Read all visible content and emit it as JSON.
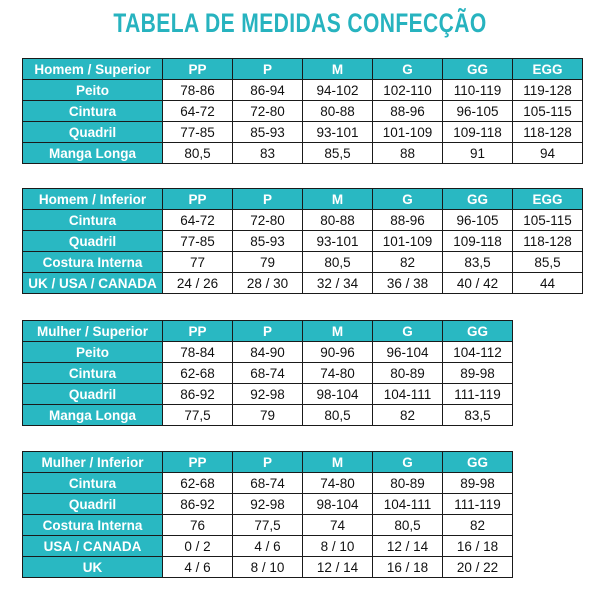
{
  "title": "TABELA DE MEDIDAS CONFECÇÃO",
  "tables": [
    {
      "corner": "Homem / Superior",
      "headers": [
        "PP",
        "P",
        "M",
        "G",
        "GG",
        "EGG"
      ],
      "rows": [
        {
          "label": "Peito",
          "cells": [
            "78-86",
            "86-94",
            "94-102",
            "102-110",
            "110-119",
            "119-128"
          ]
        },
        {
          "label": "Cintura",
          "cells": [
            "64-72",
            "72-80",
            "80-88",
            "88-96",
            "96-105",
            "105-115"
          ]
        },
        {
          "label": "Quadril",
          "cells": [
            "77-85",
            "85-93",
            "93-101",
            "101-109",
            "109-118",
            "118-128"
          ]
        },
        {
          "label": "Manga Longa",
          "cells": [
            "80,5",
            "83",
            "85,5",
            "88",
            "91",
            "94"
          ]
        }
      ]
    },
    {
      "corner": "Homem / Inferior",
      "headers": [
        "PP",
        "P",
        "M",
        "G",
        "GG",
        "EGG"
      ],
      "rows": [
        {
          "label": "Cintura",
          "cells": [
            "64-72",
            "72-80",
            "80-88",
            "88-96",
            "96-105",
            "105-115"
          ]
        },
        {
          "label": "Quadril",
          "cells": [
            "77-85",
            "85-93",
            "93-101",
            "101-109",
            "109-118",
            "118-128"
          ]
        },
        {
          "label": "Costura Interna",
          "cells": [
            "77",
            "79",
            "80,5",
            "82",
            "83,5",
            "85,5"
          ]
        },
        {
          "label": "UK / USA / CANADA",
          "cells": [
            "24 / 26",
            "28 / 30",
            "32 / 34",
            "36 / 38",
            "40 / 42",
            "44"
          ]
        }
      ]
    },
    {
      "corner": "Mulher / Superior",
      "headers": [
        "PP",
        "P",
        "M",
        "G",
        "GG"
      ],
      "rows": [
        {
          "label": "Peito",
          "cells": [
            "78-84",
            "84-90",
            "90-96",
            "96-104",
            "104-112"
          ]
        },
        {
          "label": "Cintura",
          "cells": [
            "62-68",
            "68-74",
            "74-80",
            "80-89",
            "89-98"
          ]
        },
        {
          "label": "Quadril",
          "cells": [
            "86-92",
            "92-98",
            "98-104",
            "104-111",
            "111-119"
          ]
        },
        {
          "label": "Manga Longa",
          "cells": [
            "77,5",
            "79",
            "80,5",
            "82",
            "83,5"
          ]
        }
      ]
    },
    {
      "corner": "Mulher / Inferior",
      "headers": [
        "PP",
        "P",
        "M",
        "G",
        "GG"
      ],
      "rows": [
        {
          "label": "Cintura",
          "cells": [
            "62-68",
            "68-74",
            "74-80",
            "80-89",
            "89-98"
          ]
        },
        {
          "label": "Quadril",
          "cells": [
            "86-92",
            "92-98",
            "98-104",
            "104-111",
            "111-119"
          ]
        },
        {
          "label": "Costura Interna",
          "cells": [
            "76",
            "77,5",
            "74",
            "80,5",
            "82"
          ]
        },
        {
          "label": "USA / CANADA",
          "cells": [
            "0 / 2",
            "4 / 6",
            "8 / 10",
            "12 / 14",
            "16 / 18"
          ]
        },
        {
          "label": "UK",
          "cells": [
            "4 / 6",
            "8 / 10",
            "12 / 14",
            "16 / 18",
            "20 / 22"
          ]
        }
      ]
    }
  ],
  "colors": {
    "accent": "#29b8c2",
    "title": "#27b3bf",
    "border": "#1a1a1a"
  }
}
